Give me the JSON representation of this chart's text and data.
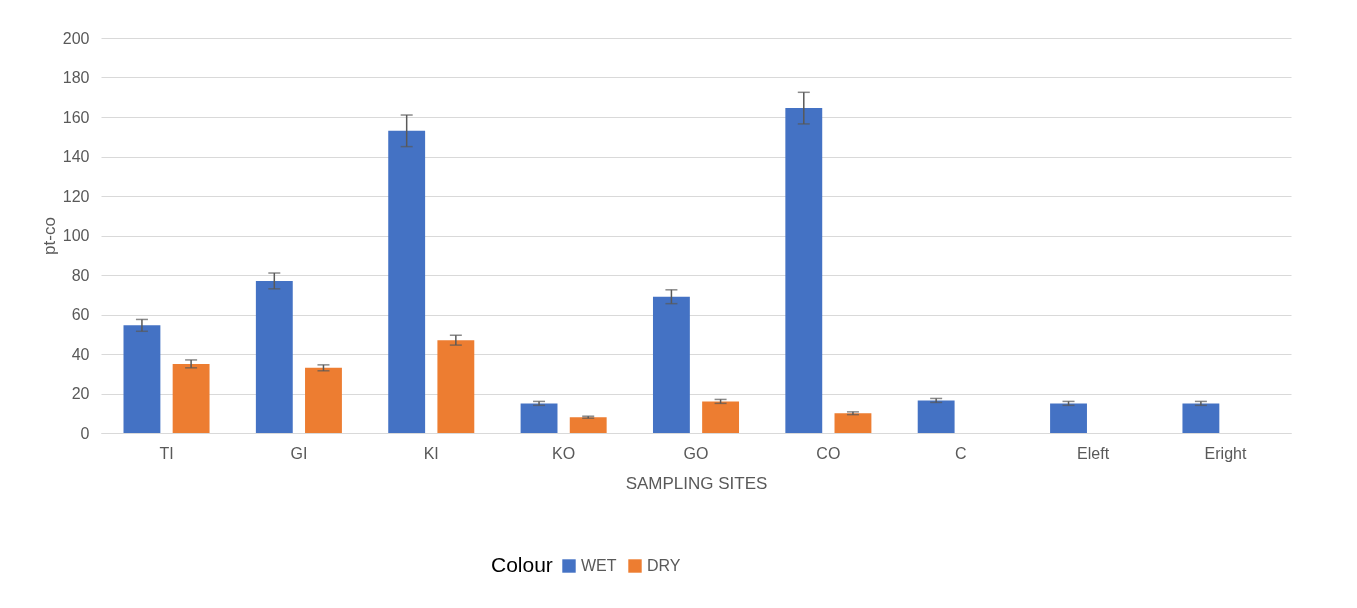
{
  "chart_data": {
    "type": "bar",
    "xlabel": "SAMPLING SITES",
    "ylabel": "pt-co",
    "legend_title": "Colour",
    "categories": [
      "TI",
      "GI",
      "KI",
      "KO",
      "GO",
      "CO",
      "C",
      "Eleft",
      "Eright"
    ],
    "series": [
      {
        "name": "WET",
        "color": "#4472c4",
        "values": [
          54.5,
          77,
          153,
          15,
          69,
          164.5,
          16.5,
          15,
          15
        ],
        "errors": [
          3,
          4,
          8,
          1,
          3.5,
          8,
          1,
          1,
          1
        ]
      },
      {
        "name": "DRY",
        "color": "#ed7d31",
        "values": [
          35,
          33,
          47,
          8,
          16,
          10,
          0,
          0,
          0
        ],
        "errors": [
          2,
          1.5,
          2.5,
          0.5,
          1,
          0.7,
          null,
          null,
          null
        ]
      }
    ],
    "ylim": [
      0,
      200
    ],
    "yticks": [
      0,
      20,
      40,
      60,
      80,
      100,
      120,
      140,
      160,
      180,
      200
    ],
    "grid": "y",
    "legend": "bottom"
  }
}
